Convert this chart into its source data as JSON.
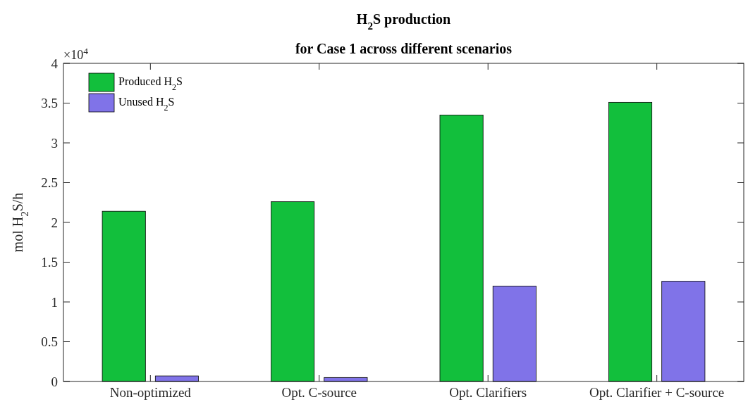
{
  "chart_data": {
    "type": "bar",
    "title": "H$_{2}$S production",
    "subtitle": "for Case 1 across different scenarios",
    "ylabel": "mol H$_{2}$S/h",
    "categories": [
      "Non-optimized",
      "Opt. C-source",
      "Opt. Clarifiers",
      "Opt. Clarifier + C-source"
    ],
    "series": [
      {
        "name": "Produced H$_{2}$S",
        "color": "#12bf3c",
        "values": [
          2.14,
          2.26,
          3.35,
          3.51
        ]
      },
      {
        "name": "Unused H$_{2}$S",
        "color": "#8073e8",
        "values": [
          0.07,
          0.05,
          1.2,
          1.26
        ]
      }
    ],
    "ylim": [
      0,
      4
    ],
    "yticks": [
      0,
      0.5,
      1,
      1.5,
      2,
      2.5,
      3,
      3.5,
      4
    ],
    "annotations": [
      "×10$^{4}$"
    ],
    "legend": "top left",
    "grid": false
  }
}
